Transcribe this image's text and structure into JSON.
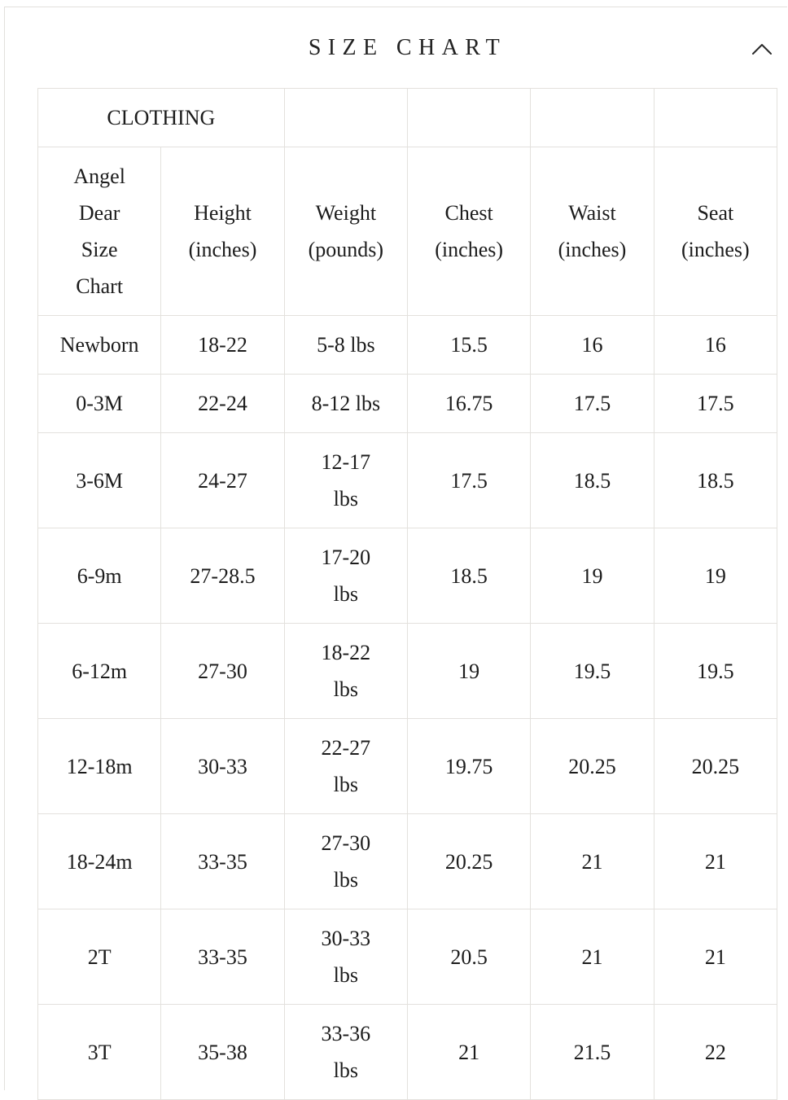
{
  "colors": {
    "background": "#ffffff",
    "text": "#1c1c1c",
    "border": "#e3e1dd"
  },
  "accordion": {
    "title": "SIZE CHART",
    "collapse_icon": "chevron-up"
  },
  "table": {
    "section_label": "CLOTHING",
    "section_empty_cells": 4,
    "header": [
      "Angel\nDear\nSize\nChart",
      "Height\n(inches)",
      "Weight\n(pounds)",
      "Chest\n(inches)",
      "Waist\n(inches)",
      "Seat\n(inches)"
    ],
    "rows": [
      [
        "Newborn",
        "18-22",
        "5-8 lbs",
        "15.5",
        "16",
        "16"
      ],
      [
        "0-3M",
        "22-24",
        "8-12 lbs",
        "16.75",
        "17.5",
        "17.5"
      ],
      [
        "3-6M",
        "24-27",
        "12-17\nlbs",
        "17.5",
        "18.5",
        "18.5"
      ],
      [
        "6-9m",
        "27-28.5",
        "17-20\nlbs",
        "18.5",
        "19",
        "19"
      ],
      [
        "6-12m",
        "27-30",
        "18-22\nlbs",
        "19",
        "19.5",
        "19.5"
      ],
      [
        "12-18m",
        "30-33",
        "22-27\nlbs",
        "19.75",
        "20.25",
        "20.25"
      ],
      [
        "18-24m",
        "33-35",
        "27-30\nlbs",
        "20.25",
        "21",
        "21"
      ],
      [
        "2T",
        "33-35",
        "30-33\nlbs",
        "20.5",
        "21",
        "21"
      ],
      [
        "3T",
        "35-38",
        "33-36\nlbs",
        "21",
        "21.5",
        "22"
      ]
    ]
  }
}
